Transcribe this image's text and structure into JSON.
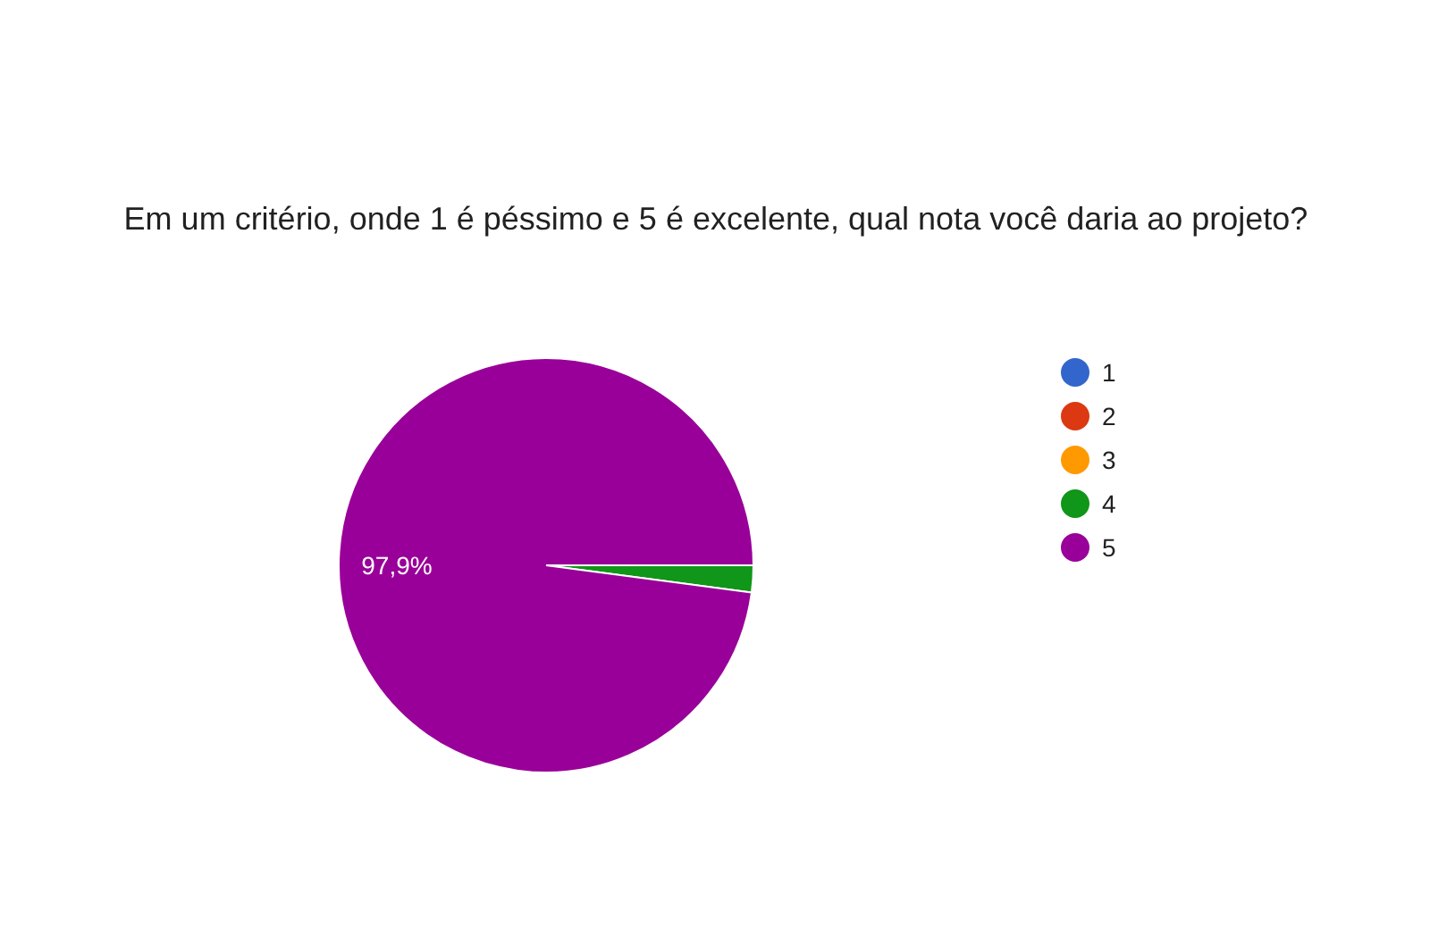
{
  "chart_data": {
    "type": "pie",
    "title": "Em um critério, onde 1 é péssimo e 5 é excelente, qual nota você daria ao projeto?",
    "categories": [
      "1",
      "2",
      "3",
      "4",
      "5"
    ],
    "values": [
      0,
      0,
      0,
      2.1,
      97.9
    ],
    "colors": [
      "#3366cc",
      "#dc3912",
      "#ff9900",
      "#109618",
      "#990099"
    ],
    "value_labels": [
      null,
      null,
      null,
      null,
      "97,9%"
    ],
    "legend": "right"
  }
}
